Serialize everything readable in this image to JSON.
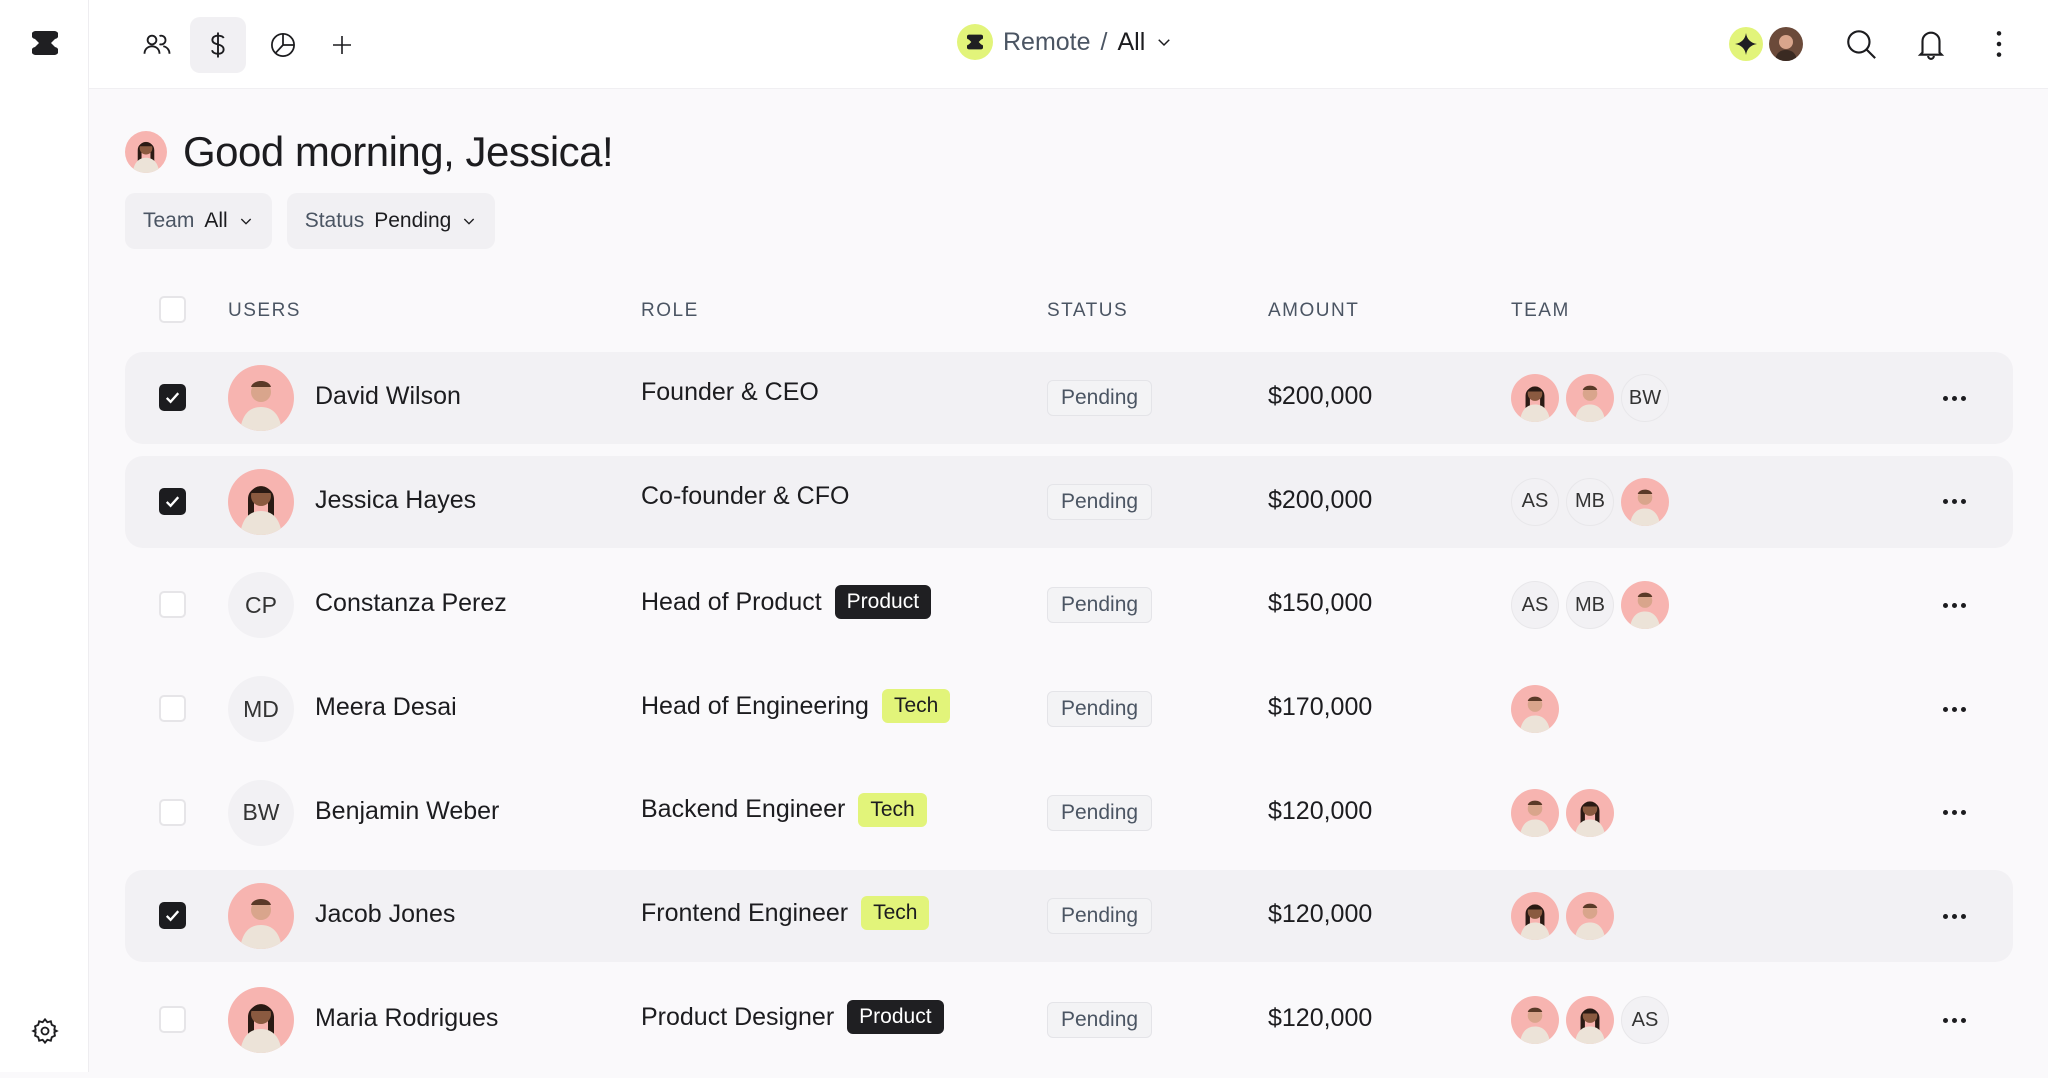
{
  "workspace": {
    "name": "Remote",
    "separator": "/",
    "view": "All"
  },
  "nav": {
    "items": [
      "team-icon",
      "dollar-icon",
      "chart-pie-icon",
      "plus-icon"
    ],
    "active": 1
  },
  "header": {
    "greeting": "Good morning, Jessica!"
  },
  "filters": [
    {
      "label": "Team",
      "value": "All"
    },
    {
      "label": "Status",
      "value": "Pending"
    }
  ],
  "table": {
    "columns": [
      "USERS",
      "ROLE",
      "STATUS",
      "AMOUNT",
      "TEAM"
    ],
    "rows": [
      {
        "name": "David Wilson",
        "photo": "m",
        "checked": true,
        "role": "Founder & CEO",
        "tag": null,
        "status": "Pending",
        "amount": "$200,000",
        "team": [
          {
            "photo": "f"
          },
          {
            "photo": "m"
          },
          {
            "initials": "BW"
          }
        ]
      },
      {
        "name": "Jessica Hayes",
        "photo": "f",
        "checked": true,
        "role": "Co-founder & CFO",
        "tag": null,
        "status": "Pending",
        "amount": "$200,000",
        "team": [
          {
            "initials": "AS"
          },
          {
            "initials": "MB"
          },
          {
            "photo": "m"
          }
        ]
      },
      {
        "name": "Constanza Perez",
        "initials": "CP",
        "checked": false,
        "role": "Head of Product",
        "tag": "Product",
        "status": "Pending",
        "amount": "$150,000",
        "team": [
          {
            "initials": "AS"
          },
          {
            "initials": "MB"
          },
          {
            "photo": "m"
          }
        ]
      },
      {
        "name": "Meera Desai",
        "initials": "MD",
        "checked": false,
        "role": "Head of Engineering",
        "tag": "Tech",
        "status": "Pending",
        "amount": "$170,000",
        "team": [
          {
            "photo": "m"
          }
        ]
      },
      {
        "name": "Benjamin Weber",
        "initials": "BW",
        "checked": false,
        "role": "Backend Engineer",
        "tag": "Tech",
        "status": "Pending",
        "amount": "$120,000",
        "team": [
          {
            "photo": "m"
          },
          {
            "photo": "f"
          }
        ]
      },
      {
        "name": "Jacob Jones",
        "photo": "m",
        "checked": true,
        "role": "Frontend Engineer",
        "tag": "Tech",
        "status": "Pending",
        "amount": "$120,000",
        "team": [
          {
            "photo": "f"
          },
          {
            "photo": "m"
          }
        ]
      },
      {
        "name": "Maria Rodrigues",
        "photo": "f2",
        "checked": false,
        "role": "Product Designer",
        "tag": "Product",
        "status": "Pending",
        "amount": "$120,000",
        "team": [
          {
            "photo": "m"
          },
          {
            "photo": "f"
          },
          {
            "initials": "AS"
          }
        ]
      }
    ]
  },
  "colors": {
    "accent": "#e2f47a",
    "dark": "#1f1f22",
    "avatar_bg": "#f7b4b0"
  }
}
